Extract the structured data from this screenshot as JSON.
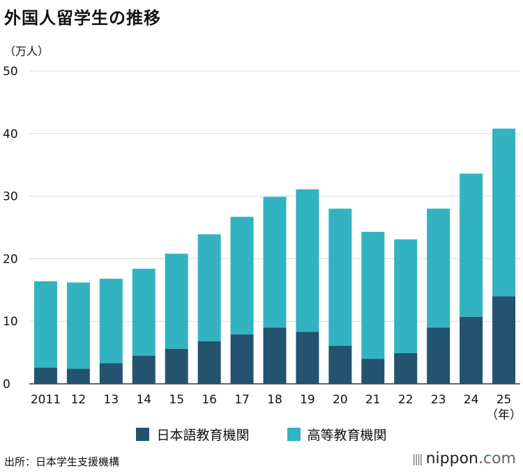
{
  "title": "外国人留学生の推移",
  "colors": {
    "language": "#23536f",
    "higher": "#33b3c1",
    "grid": "#d9d9d9"
  },
  "chart_data": {
    "type": "bar",
    "stacked": true,
    "title": "外国人留学生の推移",
    "ylabel": "（万人）",
    "xlabel_unit": "（年）",
    "ylim": [
      0,
      50
    ],
    "yticks": [
      "0",
      "10",
      "20",
      "30",
      "40",
      "50"
    ],
    "categories": [
      "2011",
      "12",
      "13",
      "14",
      "15",
      "16",
      "17",
      "18",
      "19",
      "20",
      "21",
      "22",
      "23",
      "24",
      "25"
    ],
    "series": [
      {
        "name": "日本語教育機関",
        "color": "#23536f",
        "values": [
          2.6,
          2.4,
          3.3,
          4.5,
          5.6,
          6.8,
          7.9,
          9.0,
          8.3,
          6.1,
          4.0,
          4.9,
          9.0,
          10.7,
          14.0
        ]
      },
      {
        "name": "高等教育機関",
        "color": "#33b3c1",
        "values": [
          13.8,
          13.8,
          13.5,
          13.9,
          15.2,
          17.1,
          18.8,
          20.9,
          22.8,
          21.9,
          20.3,
          18.2,
          19.0,
          22.9,
          26.8
        ]
      }
    ],
    "grid": true,
    "legend_position": "bottom"
  },
  "legend": [
    "日本語教育機関",
    "高等教育機関"
  ],
  "source": "出所：日本学生支援機構",
  "logo": {
    "bars": "||||",
    "name": "nippon",
    "dot": ".",
    "suffix": "com"
  }
}
